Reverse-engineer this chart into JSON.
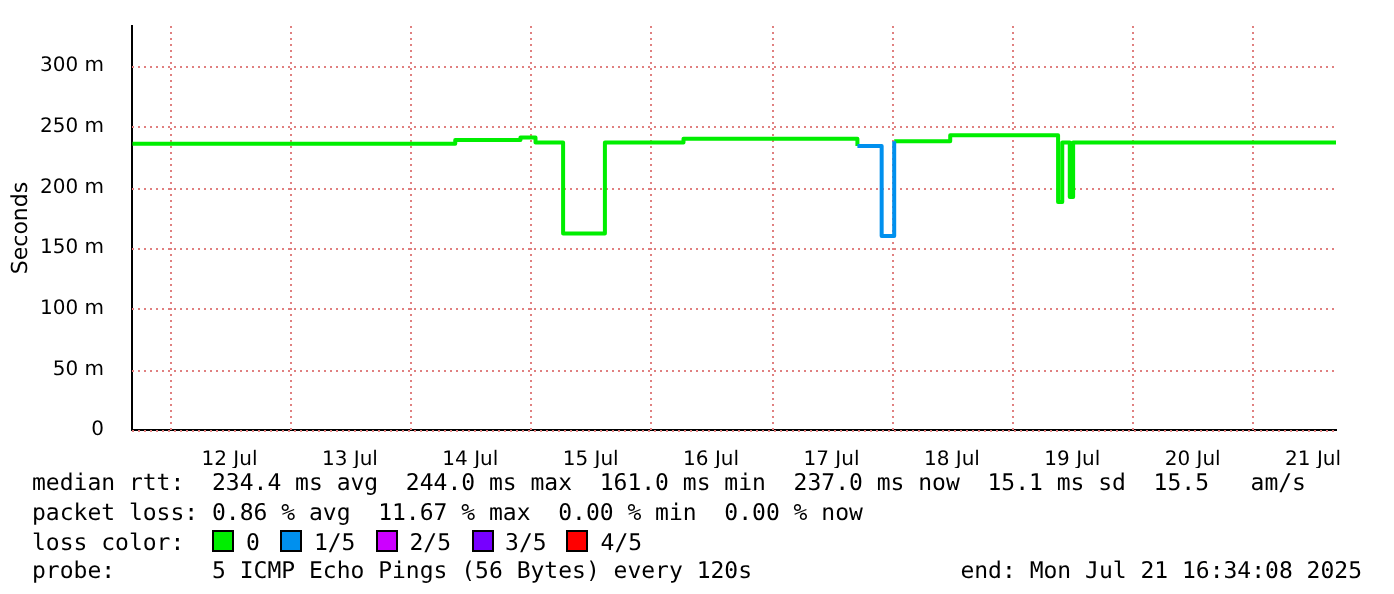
{
  "chart_data": {
    "type": "step",
    "ylabel": "Seconds",
    "legend_title": "loss color:",
    "x": [
      "2025-07-11T16:40",
      "2025-07-14T09:00",
      "2025-07-14T22:00",
      "2025-07-15T01:00",
      "2025-07-15T06:30",
      "2025-07-15T14:50",
      "2025-07-16T06:30",
      "2025-07-17T17:10",
      "2025-07-17T22:00",
      "2025-07-18T00:30",
      "2025-07-18T11:40",
      "2025-07-19T09:10",
      "2025-07-19T10:00",
      "2025-07-19T11:30",
      "2025-07-19T12:10",
      "2025-07-21T16:34"
    ],
    "series": [
      {
        "name": "0",
        "color": "#00ee00",
        "values": [
          236,
          239,
          241,
          237,
          162,
          237,
          240,
          234,
          null,
          238,
          243,
          188,
          237,
          192,
          237,
          237
        ]
      },
      {
        "name": "1/5",
        "color": "#0090ee",
        "values": [
          null,
          null,
          null,
          null,
          null,
          null,
          null,
          234,
          160,
          238,
          null,
          null,
          null,
          null,
          null,
          null
        ]
      },
      {
        "name": "2/5",
        "color": "#cc00ff",
        "values": [
          null,
          null,
          null,
          null,
          null,
          null,
          null,
          null,
          null,
          null,
          null,
          null,
          null,
          null,
          null,
          null
        ]
      },
      {
        "name": "3/5",
        "color": "#7700ff",
        "values": [
          null,
          null,
          null,
          null,
          null,
          null,
          null,
          null,
          null,
          null,
          null,
          null,
          null,
          null,
          null,
          null
        ]
      },
      {
        "name": "4/5",
        "color": "#ff0000",
        "values": [
          null,
          null,
          null,
          null,
          null,
          null,
          null,
          null,
          null,
          null,
          null,
          null,
          null,
          null,
          null,
          null
        ]
      }
    ],
    "xlim": [
      "2025-07-11T16:34",
      "2025-07-21T16:34"
    ],
    "xticks": [
      {
        "value": "2025-07-12T12:00",
        "label": "12 Jul"
      },
      {
        "value": "2025-07-13T12:00",
        "label": "13 Jul"
      },
      {
        "value": "2025-07-14T12:00",
        "label": "14 Jul"
      },
      {
        "value": "2025-07-15T12:00",
        "label": "15 Jul"
      },
      {
        "value": "2025-07-16T12:00",
        "label": "16 Jul"
      },
      {
        "value": "2025-07-17T12:00",
        "label": "17 Jul"
      },
      {
        "value": "2025-07-18T12:00",
        "label": "18 Jul"
      },
      {
        "value": "2025-07-19T12:00",
        "label": "19 Jul"
      },
      {
        "value": "2025-07-20T12:00",
        "label": "20 Jul"
      },
      {
        "value": "2025-07-21T12:00",
        "label": "21 Jul"
      }
    ],
    "ylim": [
      0,
      333
    ],
    "yticks": [
      0,
      {
        "value": 50,
        "label": "50 m"
      },
      {
        "value": 100,
        "label": "100 m"
      },
      {
        "value": 150,
        "label": "150 m"
      },
      {
        "value": 200,
        "label": "200 m"
      },
      {
        "value": 250,
        "label": "250 m"
      },
      {
        "value": 300,
        "label": "300 m"
      }
    ],
    "grid": true,
    "legend": "bottom left",
    "marker": "none",
    "line_style": "solid",
    "annotations": [
      "median rtt:  234.4 ms avg  244.0 ms max  161.0 ms min  237.0 ms now  15.1 ms sd  15.5   am/s",
      "packet loss: 0.86 % avg  11.67 % max  0.00 % min  0.00 % now",
      "probe:       5 ICMP Echo Pings (56 Bytes) every 120s",
      "end: Mon Jul 21 16:34:08 2025"
    ]
  }
}
